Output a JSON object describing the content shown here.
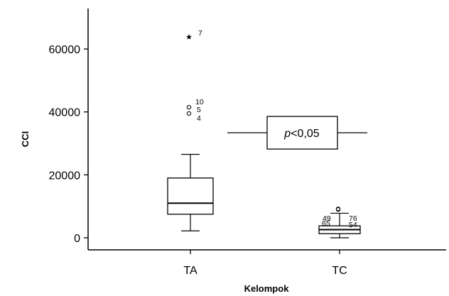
{
  "chart_data": {
    "type": "box",
    "title": "",
    "xlabel": "Kelompok",
    "ylabel": "CCI",
    "ylim": [
      -4000,
      72000
    ],
    "yticks": [
      0,
      20000,
      40000,
      60000
    ],
    "ytick_labels": [
      "0",
      "20000",
      "40000",
      "60000"
    ],
    "categories": [
      "TA",
      "TC"
    ],
    "boxes": [
      {
        "category": "TA",
        "whisker_low": 2200,
        "q1": 7500,
        "median": 11000,
        "q3": 19000,
        "whisker_high": 26500,
        "outliers": [
          {
            "value": 41500,
            "label": "10",
            "marker": "circle"
          },
          {
            "value": 39500,
            "label": "5",
            "marker": "circle"
          },
          {
            "value": 63800,
            "label": "7",
            "marker": "star"
          }
        ],
        "extra_labels": [
          "4"
        ]
      },
      {
        "category": "TC",
        "whisker_low": 0,
        "q1": 1300,
        "median": 2600,
        "q3": 3800,
        "whisker_high": 7800,
        "outliers": [
          {
            "value": 9200,
            "label": "65",
            "marker": "circle"
          },
          {
            "value": 9000,
            "label": "54",
            "marker": "circle"
          }
        ],
        "extra_labels": [
          "49",
          "76"
        ]
      }
    ],
    "annotation": {
      "italic": "p",
      "rest": "<0,05"
    }
  }
}
